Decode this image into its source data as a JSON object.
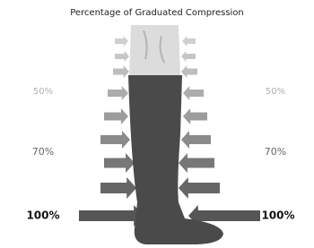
{
  "title": "Percentage of Graduated Compression",
  "levels": [
    {
      "left": "50%",
      "right": "50%"
    },
    {
      "left": "70%",
      "right": "70%"
    },
    {
      "left": "100%",
      "right": "100%"
    }
  ]
}
